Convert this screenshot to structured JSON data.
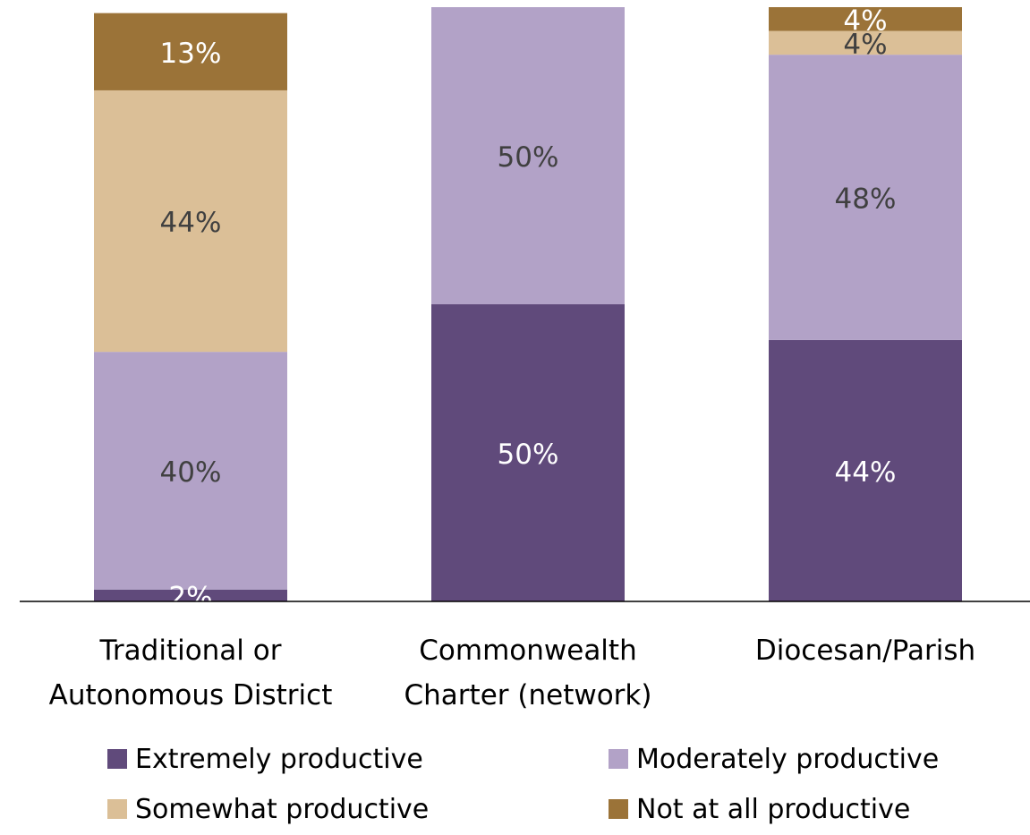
{
  "chart_data": {
    "type": "bar",
    "stacked": true,
    "categories": [
      [
        "Traditional or",
        "Autonomous District"
      ],
      [
        "Commonwealth",
        "Charter (network)"
      ],
      [
        "Diocesan/Parish"
      ]
    ],
    "series": [
      {
        "name": "Extremely productive",
        "color": "#604a7b",
        "values": [
          2,
          50,
          44
        ],
        "labels": [
          "2%",
          "50%",
          "44%"
        ],
        "label_color": "#ffffff"
      },
      {
        "name": "Moderately productive",
        "color": "#b2a2c7",
        "values": [
          40,
          50,
          48
        ],
        "labels": [
          "40%",
          "50%",
          "48%"
        ],
        "label_color": "#404040"
      },
      {
        "name": "Somewhat productive",
        "color": "#dbbf97",
        "values": [
          44,
          0,
          4
        ],
        "labels": [
          "44%",
          "",
          "4%"
        ],
        "label_color": "#404040"
      },
      {
        "name": "Not at all productive",
        "color": "#9b7338",
        "values": [
          13,
          0,
          4
        ],
        "labels": [
          "13%",
          "",
          "4%"
        ],
        "label_color": "#ffffff"
      }
    ],
    "ylim": [
      0,
      100
    ],
    "grid": false,
    "legend_position": "bottom",
    "title": "",
    "xlabel": "",
    "ylabel": ""
  }
}
